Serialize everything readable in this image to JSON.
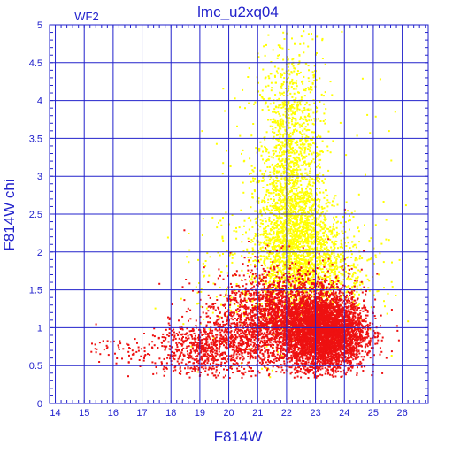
{
  "chart_data": {
    "type": "scatter",
    "title": "lmc_u2xq04",
    "annotation": "WF2",
    "xlabel": "F814W",
    "ylabel": "F814W chi",
    "xlim": [
      13.8,
      26.9
    ],
    "ylim": [
      0,
      5
    ],
    "x_ticks": [
      "14",
      "15",
      "16",
      "17",
      "18",
      "19",
      "20",
      "21",
      "22",
      "23",
      "24",
      "25",
      "26"
    ],
    "y_ticks": [
      "0",
      "0.5",
      "1",
      "1.5",
      "2",
      "2.5",
      "3",
      "3.5",
      "4",
      "4.5",
      "5"
    ],
    "grid": true,
    "colors": {
      "axis": "#2222cc",
      "grid": "#2222cc",
      "series_red": "#ee1111",
      "series_yellow": "#ffff00",
      "background": "#ffffff"
    },
    "series": [
      {
        "color": "yellow",
        "clusters": [
          {
            "x_center": 22.1,
            "x_spread": 0.55,
            "y_center": 3.0,
            "y_spread": 0.9,
            "count": 1600
          },
          {
            "x_center": 22.3,
            "x_spread": 0.75,
            "y_center": 2.1,
            "y_spread": 0.45,
            "count": 1400
          },
          {
            "x_center": 23.3,
            "x_spread": 0.9,
            "y_center": 1.7,
            "y_spread": 0.35,
            "count": 600
          },
          {
            "x_center": 20.5,
            "x_spread": 1.2,
            "y_center": 1.6,
            "y_spread": 0.5,
            "count": 180
          },
          {
            "x_center": 22.5,
            "x_spread": 1.6,
            "y_center": 3.5,
            "y_spread": 1.0,
            "count": 120
          }
        ]
      },
      {
        "color": "red",
        "clusters": [
          {
            "x_center": 23.3,
            "x_spread": 0.7,
            "y_center": 0.95,
            "y_spread": 0.25,
            "count": 4000
          },
          {
            "x_center": 22.0,
            "x_spread": 0.9,
            "y_center": 1.1,
            "y_spread": 0.28,
            "count": 1800
          },
          {
            "x_center": 20.3,
            "x_spread": 0.8,
            "y_center": 0.85,
            "y_spread": 0.25,
            "count": 700
          },
          {
            "x_center": 18.7,
            "x_spread": 0.7,
            "y_center": 0.72,
            "y_spread": 0.17,
            "count": 400
          },
          {
            "x_center": 16.8,
            "x_spread": 0.9,
            "y_center": 0.7,
            "y_spread": 0.12,
            "count": 80
          },
          {
            "x_center": 21.5,
            "x_spread": 1.3,
            "y_center": 1.5,
            "y_spread": 0.25,
            "count": 300
          }
        ]
      }
    ]
  }
}
